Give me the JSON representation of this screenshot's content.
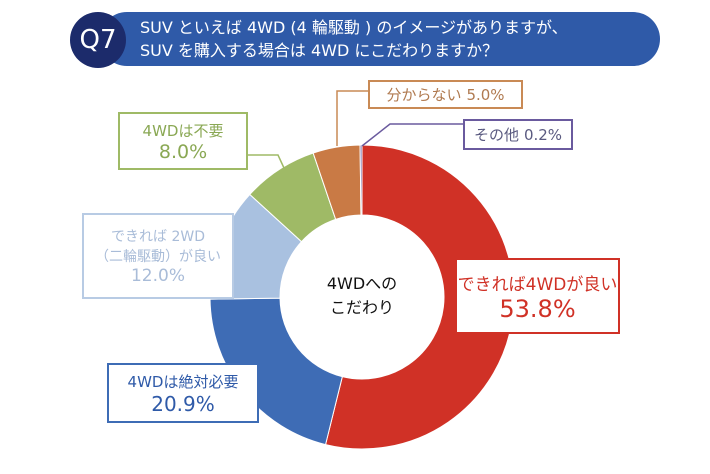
{
  "header": {
    "badge": "Q7",
    "line1": "SUV といえば 4WD (4 輪駆動 ) のイメージがありますが、",
    "line2": "SUV を購入する場合は 4WD にこだわりますか？"
  },
  "chart_data": {
    "type": "pie",
    "donut": true,
    "center_label": [
      "4WDへの",
      "こだわり"
    ],
    "slices": [
      {
        "label": "できれば4WDが良い",
        "value": 53.8,
        "value_text": "53.8%",
        "color": "#d03126"
      },
      {
        "label": "4WDは絶対必要",
        "value": 20.9,
        "value_text": "20.9%",
        "color": "#3e6cb5"
      },
      {
        "label": "できれば 2WD（二輪駆動）が良い",
        "label_lines": [
          "できれば 2WD",
          "（二輪駆動）が良い"
        ],
        "value": 12.0,
        "value_text": "12.0%",
        "color": "#a9c1e0"
      },
      {
        "label": "4WDは不要",
        "value": 8.0,
        "value_text": "8.0%",
        "color": "#9fba66"
      },
      {
        "label": "分からない",
        "value": 5.0,
        "value_text": "5.0%",
        "color": "#c97a45"
      },
      {
        "label": "その他",
        "value": 0.2,
        "value_text": "0.2%",
        "color": "#6a5a9e"
      }
    ]
  }
}
